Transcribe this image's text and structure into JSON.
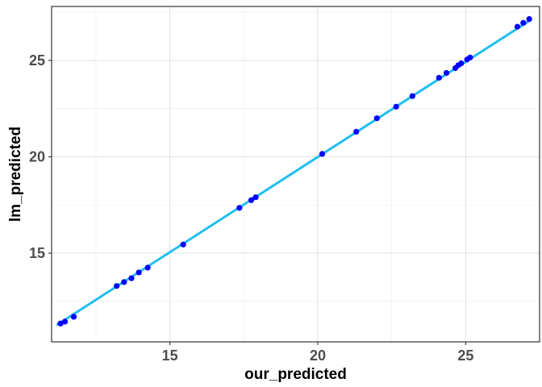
{
  "chart_data": {
    "type": "scatter",
    "xlabel": "our_predicted",
    "ylabel": "lm_predicted",
    "xlim": [
      11.0,
      27.5
    ],
    "ylim": [
      10.4,
      27.8
    ],
    "xticks": [
      15,
      20,
      25
    ],
    "yticks": [
      15,
      20,
      25
    ],
    "grid": true,
    "points_color": "#0000ff",
    "line_color": "#1fbfef",
    "fit_line": {
      "x": [
        11.2,
        27.2
      ],
      "y": [
        11.3,
        27.1
      ]
    },
    "points": {
      "x": [
        11.3,
        11.45,
        11.75,
        13.2,
        13.45,
        13.7,
        13.95,
        14.25,
        15.45,
        17.35,
        17.75,
        17.9,
        20.15,
        21.3,
        22.0,
        22.65,
        23.2,
        24.1,
        24.35,
        24.65,
        24.75,
        24.85,
        25.05,
        25.15,
        26.75,
        26.95,
        27.15
      ],
      "y": [
        11.35,
        11.45,
        11.7,
        13.3,
        13.5,
        13.7,
        14.0,
        14.25,
        15.45,
        17.35,
        17.75,
        17.9,
        20.15,
        21.3,
        22.0,
        22.6,
        23.15,
        24.1,
        24.35,
        24.6,
        24.75,
        24.85,
        25.05,
        25.15,
        26.75,
        26.95,
        27.15
      ]
    }
  }
}
